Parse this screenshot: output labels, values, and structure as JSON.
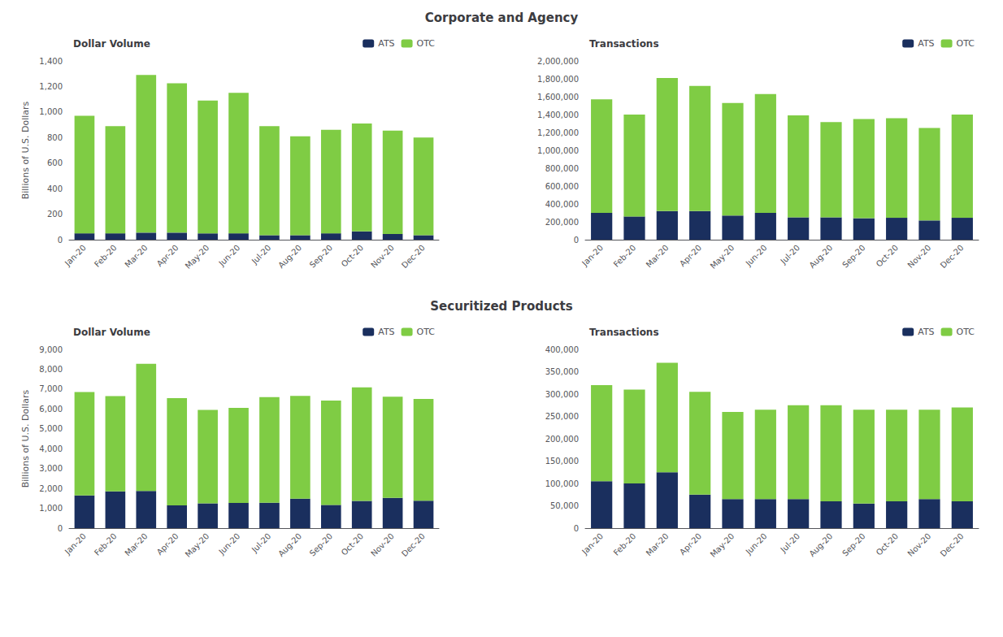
{
  "chart_data": [
    {
      "type": "bar",
      "title": "Corporate and Agency",
      "subtitle": "Dollar Volume",
      "ylabel": "Billions of U.S. Dollars",
      "categories": [
        "Jan-20",
        "Feb-20",
        "Mar-20",
        "Apr-20",
        "May-20",
        "Jun-20",
        "Jul-20",
        "Aug-20",
        "Sep-20",
        "Oct-20",
        "Nov-20",
        "Dec-20"
      ],
      "series": [
        {
          "name": "ATS",
          "color": "#1a2f5e",
          "values": [
            50,
            50,
            55,
            55,
            50,
            50,
            35,
            35,
            50,
            65,
            45,
            35
          ]
        },
        {
          "name": "OTC",
          "color": "#7fcc44",
          "values": [
            920,
            840,
            1235,
            1170,
            1040,
            1100,
            855,
            775,
            810,
            845,
            810,
            765
          ]
        }
      ],
      "stacked": true,
      "grid": false,
      "legend": "upper right",
      "ylim": [
        0,
        1400
      ],
      "yticks": [
        0,
        200,
        400,
        600,
        800,
        {
          "value": 1000,
          "label": "1,000"
        },
        {
          "value": 1200,
          "label": "1,200"
        },
        {
          "value": 1400,
          "label": "1,400"
        }
      ]
    },
    {
      "type": "bar",
      "subtitle": "Transactions",
      "categories": [
        "Jan-20",
        "Feb-20",
        "Mar-20",
        "Apr-20",
        "May-20",
        "Jun-20",
        "Jul-20",
        "Aug-20",
        "Sep-20",
        "Oct-20",
        "Nov-20",
        "Dec-20"
      ],
      "series": [
        {
          "name": "ATS",
          "color": "#1a2f5e",
          "values": [
            300000,
            260000,
            320000,
            320000,
            270000,
            300000,
            250000,
            250000,
            240000,
            245000,
            215000,
            245000
          ]
        },
        {
          "name": "OTC",
          "color": "#7fcc44",
          "values": [
            1270000,
            1140000,
            1490000,
            1400000,
            1260000,
            1330000,
            1140000,
            1065000,
            1110000,
            1115000,
            1035000,
            1155000
          ]
        }
      ],
      "stacked": true,
      "grid": false,
      "legend": "upper right",
      "ylim": [
        0,
        2000000
      ],
      "yticks": [
        0,
        {
          "value": 200000,
          "label": "200,000"
        },
        {
          "value": 400000,
          "label": "400,000"
        },
        {
          "value": 600000,
          "label": "600,000"
        },
        {
          "value": 800000,
          "label": "800,000"
        },
        {
          "value": 1000000,
          "label": "1,000,000"
        },
        {
          "value": 1200000,
          "label": "1,200,000"
        },
        {
          "value": 1400000,
          "label": "1,400,000"
        },
        {
          "value": 1600000,
          "label": "1,600,000"
        },
        {
          "value": 1800000,
          "label": "1,800,000"
        },
        {
          "value": 2000000,
          "label": "2,000,000"
        }
      ]
    },
    {
      "type": "bar",
      "title": "Securitized Products",
      "subtitle": "Dollar Volume",
      "ylabel": "Billions of U.S. Dollars",
      "categories": [
        "Jan-20",
        "Feb-20",
        "Mar-20",
        "Apr-20",
        "May-20",
        "Jun-20",
        "Jul-20",
        "Aug-20",
        "Sep-20",
        "Oct-20",
        "Nov-20",
        "Dec-20"
      ],
      "series": [
        {
          "name": "ATS",
          "color": "#1a2f5e",
          "values": [
            1650,
            1850,
            1870,
            1150,
            1250,
            1270,
            1280,
            1480,
            1170,
            1370,
            1520,
            1380
          ]
        },
        {
          "name": "OTC",
          "color": "#7fcc44",
          "values": [
            5200,
            4800,
            6400,
            5400,
            4700,
            4780,
            5320,
            5180,
            5250,
            5720,
            5100,
            5120
          ]
        }
      ],
      "stacked": true,
      "grid": false,
      "legend": "upper right",
      "ylim": [
        0,
        9000
      ],
      "yticks": [
        0,
        {
          "value": 1000,
          "label": "1,000"
        },
        {
          "value": 2000,
          "label": "2,000"
        },
        {
          "value": 3000,
          "label": "3,000"
        },
        {
          "value": 4000,
          "label": "4,000"
        },
        {
          "value": 5000,
          "label": "5,000"
        },
        {
          "value": 6000,
          "label": "6,000"
        },
        {
          "value": 7000,
          "label": "7,000"
        },
        {
          "value": 8000,
          "label": "8,000"
        },
        {
          "value": 9000,
          "label": "9,000"
        }
      ]
    },
    {
      "type": "bar",
      "subtitle": "Transactions",
      "categories": [
        "Jan-20",
        "Feb-20",
        "Mar-20",
        "Apr-20",
        "May-20",
        "Jun-20",
        "Jul-20",
        "Aug-20",
        "Sep-20",
        "Oct-20",
        "Nov-20",
        "Dec-20"
      ],
      "series": [
        {
          "name": "ATS",
          "color": "#1a2f5e",
          "values": [
            105000,
            100000,
            125000,
            75000,
            65000,
            65000,
            65000,
            60000,
            55000,
            60000,
            65000,
            60000
          ]
        },
        {
          "name": "OTC",
          "color": "#7fcc44",
          "values": [
            215000,
            210000,
            245000,
            230000,
            195000,
            200000,
            210000,
            215000,
            210000,
            205000,
            200000,
            210000
          ]
        }
      ],
      "stacked": true,
      "grid": false,
      "legend": "upper right",
      "ylim": [
        0,
        400000
      ],
      "yticks": [
        0,
        {
          "value": 50000,
          "label": "50,000"
        },
        {
          "value": 100000,
          "label": "100,000"
        },
        {
          "value": 150000,
          "label": "150,000"
        },
        {
          "value": 200000,
          "label": "200,000"
        },
        {
          "value": 250000,
          "label": "250,000"
        },
        {
          "value": 300000,
          "label": "300,000"
        },
        {
          "value": 350000,
          "label": "350,000"
        },
        {
          "value": 400000,
          "label": "400,000"
        }
      ]
    }
  ]
}
